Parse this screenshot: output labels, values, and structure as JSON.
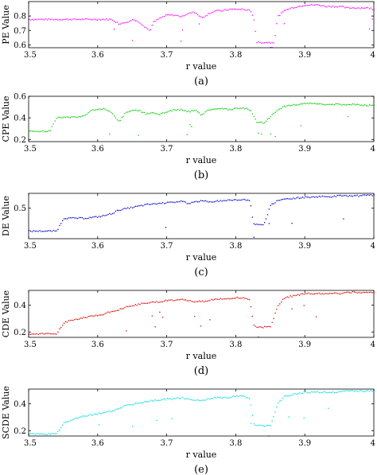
{
  "chart_data": [
    {
      "type": "scatter",
      "caption": "(a)",
      "xlabel": "r value",
      "ylabel": "PE Value",
      "xlim": [
        3.5,
        4.0
      ],
      "ylim": [
        0.58,
        0.9
      ],
      "xticks": [
        "3.5",
        "3.6",
        "3.7",
        "3.8",
        "3.9",
        "4"
      ],
      "yticks": [
        "0.6",
        "0.7",
        "0.8"
      ],
      "color": "#ff00ff",
      "series": [
        {
          "x": [
            3.5,
            3.51,
            3.52,
            3.53,
            3.54,
            3.55,
            3.56,
            3.57,
            3.58,
            3.59,
            3.6,
            3.61,
            3.62,
            3.63,
            3.64,
            3.65,
            3.66,
            3.67,
            3.675,
            3.68,
            3.69,
            3.7,
            3.71,
            3.72,
            3.73,
            3.74,
            3.75,
            3.76,
            3.77,
            3.78,
            3.79,
            3.8,
            3.81,
            3.82,
            3.825,
            3.83,
            3.84,
            3.85,
            3.855,
            3.86,
            3.87,
            3.88,
            3.89,
            3.9,
            3.91,
            3.92,
            3.93,
            3.94,
            3.95,
            3.96,
            3.97,
            3.98,
            3.99,
            4.0
          ],
          "y": [
            0.78,
            0.78,
            0.78,
            0.78,
            0.78,
            0.78,
            0.78,
            0.78,
            0.78,
            0.78,
            0.78,
            0.78,
            0.78,
            0.75,
            0.76,
            0.78,
            0.76,
            0.72,
            0.7,
            0.76,
            0.79,
            0.81,
            0.81,
            0.8,
            0.82,
            0.83,
            0.79,
            0.82,
            0.84,
            0.84,
            0.85,
            0.85,
            0.85,
            0.84,
            0.8,
            0.62,
            0.62,
            0.62,
            0.62,
            0.8,
            0.84,
            0.86,
            0.87,
            0.88,
            0.88,
            0.88,
            0.87,
            0.87,
            0.87,
            0.86,
            0.86,
            0.86,
            0.86,
            0.85
          ]
        }
      ]
    },
    {
      "type": "scatter",
      "caption": "(b)",
      "xlabel": "r value",
      "ylabel": "CPE Value",
      "xlim": [
        3.5,
        4.0
      ],
      "ylim": [
        0.18,
        0.6
      ],
      "xticks": [
        "3.5",
        "3.6",
        "3.7",
        "3.8",
        "3.9",
        "4"
      ],
      "yticks": [
        "0.2",
        "0.4",
        "0.6"
      ],
      "color": "#00cc00",
      "series": [
        {
          "x": [
            3.5,
            3.51,
            3.52,
            3.53,
            3.54,
            3.55,
            3.56,
            3.57,
            3.58,
            3.59,
            3.6,
            3.61,
            3.62,
            3.63,
            3.64,
            3.65,
            3.66,
            3.67,
            3.68,
            3.69,
            3.7,
            3.71,
            3.72,
            3.73,
            3.74,
            3.75,
            3.76,
            3.77,
            3.78,
            3.79,
            3.8,
            3.81,
            3.82,
            3.825,
            3.83,
            3.84,
            3.85,
            3.86,
            3.87,
            3.88,
            3.89,
            3.9,
            3.91,
            3.92,
            3.93,
            3.94,
            3.95,
            3.96,
            3.97,
            3.98,
            3.99,
            4.0
          ],
          "y": [
            0.28,
            0.28,
            0.28,
            0.28,
            0.41,
            0.41,
            0.41,
            0.41,
            0.43,
            0.47,
            0.49,
            0.49,
            0.45,
            0.37,
            0.45,
            0.48,
            0.47,
            0.44,
            0.45,
            0.44,
            0.46,
            0.48,
            0.48,
            0.46,
            0.48,
            0.43,
            0.48,
            0.49,
            0.49,
            0.48,
            0.49,
            0.5,
            0.48,
            0.42,
            0.36,
            0.36,
            0.42,
            0.48,
            0.51,
            0.52,
            0.53,
            0.54,
            0.54,
            0.53,
            0.53,
            0.53,
            0.53,
            0.53,
            0.53,
            0.52,
            0.52,
            0.52
          ]
        }
      ]
    },
    {
      "type": "scatter",
      "caption": "(c)",
      "xlabel": "r value",
      "ylabel": "DE Value",
      "xlim": [
        3.5,
        4.0
      ],
      "ylim": [
        0.05,
        0.72
      ],
      "xticks": [
        "3.5",
        "3.6",
        "3.7",
        "3.8",
        "3.9",
        "4"
      ],
      "yticks": [
        "0.5"
      ],
      "color": "#0000cc",
      "series": [
        {
          "x": [
            3.5,
            3.51,
            3.52,
            3.53,
            3.54,
            3.55,
            3.56,
            3.57,
            3.58,
            3.59,
            3.6,
            3.61,
            3.62,
            3.63,
            3.64,
            3.65,
            3.66,
            3.67,
            3.68,
            3.69,
            3.7,
            3.71,
            3.72,
            3.73,
            3.74,
            3.75,
            3.76,
            3.77,
            3.78,
            3.79,
            3.8,
            3.81,
            3.82,
            3.825,
            3.83,
            3.84,
            3.85,
            3.86,
            3.87,
            3.88,
            3.89,
            3.9,
            3.91,
            3.92,
            3.93,
            3.94,
            3.95,
            3.96,
            3.97,
            3.98,
            3.99,
            4.0
          ],
          "y": [
            0.17,
            0.17,
            0.17,
            0.17,
            0.17,
            0.36,
            0.36,
            0.36,
            0.36,
            0.37,
            0.38,
            0.4,
            0.43,
            0.48,
            0.5,
            0.52,
            0.54,
            0.56,
            0.57,
            0.58,
            0.59,
            0.6,
            0.61,
            0.58,
            0.6,
            0.62,
            0.6,
            0.61,
            0.62,
            0.63,
            0.63,
            0.64,
            0.62,
            0.27,
            0.27,
            0.27,
            0.55,
            0.62,
            0.64,
            0.65,
            0.66,
            0.67,
            0.67,
            0.68,
            0.68,
            0.68,
            0.69,
            0.69,
            0.69,
            0.69,
            0.7,
            0.7
          ]
        }
      ]
    },
    {
      "type": "scatter",
      "caption": "(d)",
      "xlabel": "r value",
      "ylabel": "CDE Value",
      "xlim": [
        3.5,
        4.0
      ],
      "ylim": [
        0.16,
        0.51
      ],
      "xticks": [
        "3.5",
        "3.6",
        "3.7",
        "3.8",
        "3.9",
        "4"
      ],
      "yticks": [
        "0.2",
        "0.4"
      ],
      "color": "#dd0000",
      "series": [
        {
          "x": [
            3.5,
            3.51,
            3.52,
            3.53,
            3.54,
            3.55,
            3.56,
            3.57,
            3.58,
            3.59,
            3.6,
            3.61,
            3.62,
            3.63,
            3.64,
            3.65,
            3.66,
            3.67,
            3.68,
            3.69,
            3.7,
            3.71,
            3.72,
            3.73,
            3.74,
            3.75,
            3.76,
            3.77,
            3.78,
            3.79,
            3.8,
            3.81,
            3.82,
            3.825,
            3.83,
            3.84,
            3.85,
            3.86,
            3.87,
            3.88,
            3.89,
            3.9,
            3.91,
            3.92,
            3.93,
            3.94,
            3.95,
            3.96,
            3.97,
            3.98,
            3.99,
            4.0
          ],
          "y": [
            0.19,
            0.19,
            0.19,
            0.19,
            0.19,
            0.27,
            0.29,
            0.3,
            0.31,
            0.32,
            0.33,
            0.34,
            0.36,
            0.37,
            0.39,
            0.4,
            0.41,
            0.42,
            0.43,
            0.43,
            0.44,
            0.44,
            0.45,
            0.44,
            0.43,
            0.43,
            0.44,
            0.45,
            0.45,
            0.45,
            0.46,
            0.46,
            0.44,
            0.26,
            0.24,
            0.24,
            0.24,
            0.4,
            0.46,
            0.47,
            0.48,
            0.49,
            0.49,
            0.49,
            0.49,
            0.49,
            0.49,
            0.5,
            0.5,
            0.5,
            0.5,
            0.5
          ]
        }
      ]
    },
    {
      "type": "scatter",
      "caption": "(e)",
      "xlabel": "r value",
      "ylabel": "SCDE Value",
      "xlim": [
        3.5,
        4.0
      ],
      "ylim": [
        0.16,
        0.51
      ],
      "xticks": [
        "3.5",
        "3.6",
        "3.7",
        "3.8",
        "3.9",
        "4"
      ],
      "yticks": [
        "0.2",
        "0.4"
      ],
      "color": "#00dddd",
      "series": [
        {
          "x": [
            3.5,
            3.51,
            3.52,
            3.53,
            3.54,
            3.55,
            3.56,
            3.57,
            3.58,
            3.59,
            3.6,
            3.61,
            3.62,
            3.63,
            3.64,
            3.65,
            3.66,
            3.67,
            3.68,
            3.69,
            3.7,
            3.71,
            3.72,
            3.73,
            3.74,
            3.75,
            3.76,
            3.77,
            3.78,
            3.79,
            3.8,
            3.81,
            3.82,
            3.825,
            3.83,
            3.84,
            3.85,
            3.86,
            3.87,
            3.88,
            3.89,
            3.9,
            3.91,
            3.92,
            3.93,
            3.94,
            3.95,
            3.96,
            3.97,
            3.98,
            3.99,
            4.0
          ],
          "y": [
            0.18,
            0.18,
            0.18,
            0.18,
            0.18,
            0.26,
            0.28,
            0.3,
            0.31,
            0.32,
            0.33,
            0.34,
            0.35,
            0.37,
            0.39,
            0.4,
            0.41,
            0.42,
            0.43,
            0.43,
            0.44,
            0.44,
            0.45,
            0.44,
            0.43,
            0.43,
            0.44,
            0.45,
            0.45,
            0.45,
            0.46,
            0.46,
            0.44,
            0.26,
            0.24,
            0.24,
            0.24,
            0.4,
            0.46,
            0.47,
            0.48,
            0.49,
            0.49,
            0.49,
            0.49,
            0.49,
            0.49,
            0.5,
            0.5,
            0.5,
            0.5,
            0.5
          ]
        }
      ]
    }
  ]
}
